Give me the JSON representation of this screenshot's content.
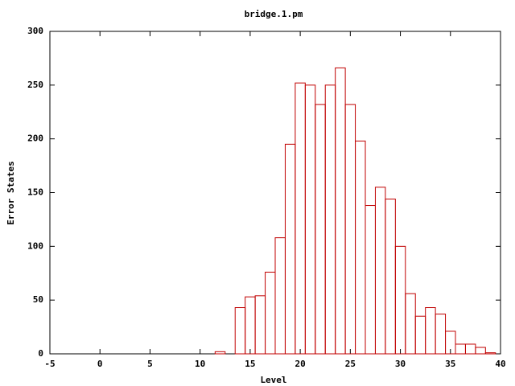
{
  "chart_data": {
    "type": "histogram",
    "title": "bridge.1.pm",
    "x_label": "Level",
    "y_label": "Error States",
    "bins": [
      11.5,
      12.5,
      13.5,
      14.5,
      15.5,
      16.5,
      17.5,
      18.5,
      19.5,
      20.5,
      21.5,
      22.5,
      23.5,
      24.5,
      25.5,
      26.5,
      27.5,
      28.5,
      29.5,
      30.5,
      31.5,
      32.5,
      33.5,
      34.5,
      35.5,
      36.5,
      37.5,
      38.5,
      39.5
    ],
    "values": [
      2,
      0,
      43,
      53,
      54,
      76,
      108,
      195,
      252,
      250,
      232,
      250,
      266,
      232,
      198,
      138,
      155,
      144,
      100,
      56,
      35,
      43,
      37,
      21,
      9,
      9,
      6,
      1
    ],
    "color": "#c00000",
    "xlim": [
      -5,
      40
    ],
    "xticks": [
      -5,
      0,
      5,
      10,
      15,
      20,
      25,
      30,
      35,
      40
    ],
    "ylim": [
      0,
      300
    ],
    "yticks": [
      0,
      50,
      100,
      150,
      200,
      250,
      300
    ]
  }
}
